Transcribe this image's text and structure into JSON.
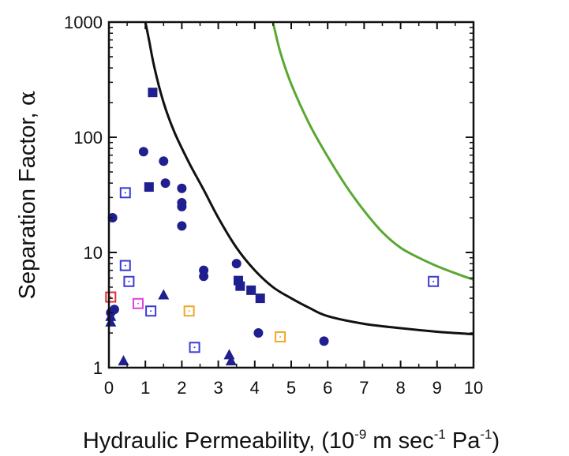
{
  "chart_data": {
    "type": "scatter",
    "title": "",
    "xlabel": {
      "text": "Hydraulic Permeability, (10",
      "exp1": "-9",
      "mid1": " m sec",
      "exp2": "-1",
      "mid2": " Pa",
      "exp3": "-1",
      "end": ")"
    },
    "ylabel": {
      "text": "Separation Factor, ",
      "symbol": "α"
    },
    "xlim": [
      0,
      10
    ],
    "ylim": [
      1,
      1000
    ],
    "yscale": "log",
    "grid": false,
    "legend": "none",
    "x_ticks": [
      "0",
      "1",
      "2",
      "3",
      "4",
      "5",
      "6",
      "7",
      "8",
      "9",
      "10"
    ],
    "y_ticks": [
      {
        "value": 1,
        "label": "1"
      },
      {
        "value": 10,
        "label": "10"
      },
      {
        "value": 100,
        "label": "100"
      },
      {
        "value": 1000,
        "label": "1000"
      }
    ],
    "colors": {
      "navy": "#1f1f8f",
      "blue_open": "#3b3bd6",
      "pink": "#e040e0",
      "orange": "#f0a828",
      "red": "#e03030",
      "black_curve": "#111111",
      "green_curve": "#5aa832"
    },
    "series": [
      {
        "marker": "filled-circle",
        "color": "navy",
        "points": [
          [
            0.05,
            3.0
          ],
          [
            0.1,
            20
          ],
          [
            0.15,
            3.2
          ],
          [
            0.95,
            75
          ],
          [
            1.5,
            62
          ],
          [
            1.55,
            40
          ],
          [
            2.0,
            36
          ],
          [
            2.0,
            27
          ],
          [
            2.0,
            25
          ],
          [
            2.0,
            17
          ],
          [
            2.6,
            7.0
          ],
          [
            2.6,
            6.2
          ],
          [
            3.5,
            8.0
          ],
          [
            4.1,
            2.0
          ],
          [
            5.9,
            1.7
          ]
        ]
      },
      {
        "marker": "filled-square",
        "color": "navy",
        "points": [
          [
            1.2,
            245
          ],
          [
            1.1,
            37
          ],
          [
            3.55,
            5.7
          ],
          [
            3.6,
            5.1
          ],
          [
            3.9,
            4.7
          ],
          [
            4.15,
            4.0
          ]
        ]
      },
      {
        "marker": "filled-triangle",
        "color": "navy",
        "points": [
          [
            0.05,
            2.5
          ],
          [
            0.05,
            2.8
          ],
          [
            0.4,
            1.15
          ],
          [
            1.5,
            4.3
          ],
          [
            3.3,
            1.3
          ],
          [
            3.35,
            1.15
          ]
        ]
      },
      {
        "marker": "open-square",
        "color": "blue_open",
        "points": [
          [
            0.45,
            33
          ],
          [
            0.45,
            7.7
          ],
          [
            0.55,
            5.6
          ],
          [
            1.15,
            3.1
          ],
          [
            2.35,
            1.5
          ],
          [
            8.9,
            5.6
          ]
        ]
      },
      {
        "marker": "open-square",
        "color": "pink",
        "points": [
          [
            0.8,
            3.6
          ]
        ]
      },
      {
        "marker": "open-square",
        "color": "orange",
        "points": [
          [
            2.2,
            3.1
          ],
          [
            4.7,
            1.85
          ]
        ]
      },
      {
        "marker": "open-square",
        "color": "red",
        "points": [
          [
            0.05,
            4.1
          ]
        ]
      }
    ],
    "curves": [
      {
        "color": "black_curve",
        "points": [
          [
            1.0,
            1000
          ],
          [
            1.1,
            700
          ],
          [
            1.25,
            400
          ],
          [
            1.5,
            200
          ],
          [
            1.8,
            110
          ],
          [
            2.2,
            60
          ],
          [
            2.6,
            35
          ],
          [
            3.0,
            20
          ],
          [
            3.5,
            11
          ],
          [
            4.0,
            7
          ],
          [
            4.5,
            5
          ],
          [
            5.0,
            4
          ],
          [
            5.5,
            3.3
          ],
          [
            6.0,
            2.8
          ],
          [
            7.0,
            2.4
          ],
          [
            8.0,
            2.2
          ],
          [
            9.0,
            2.05
          ],
          [
            10.0,
            1.95
          ]
        ]
      },
      {
        "color": "green_curve",
        "points": [
          [
            4.5,
            1000
          ],
          [
            4.7,
            550
          ],
          [
            5.0,
            290
          ],
          [
            5.5,
            130
          ],
          [
            6.0,
            68
          ],
          [
            6.5,
            38
          ],
          [
            7.0,
            23
          ],
          [
            7.5,
            15
          ],
          [
            8.0,
            11
          ],
          [
            8.5,
            9
          ],
          [
            9.0,
            7.6
          ],
          [
            9.5,
            6.6
          ],
          [
            10.0,
            5.8
          ]
        ]
      }
    ]
  }
}
